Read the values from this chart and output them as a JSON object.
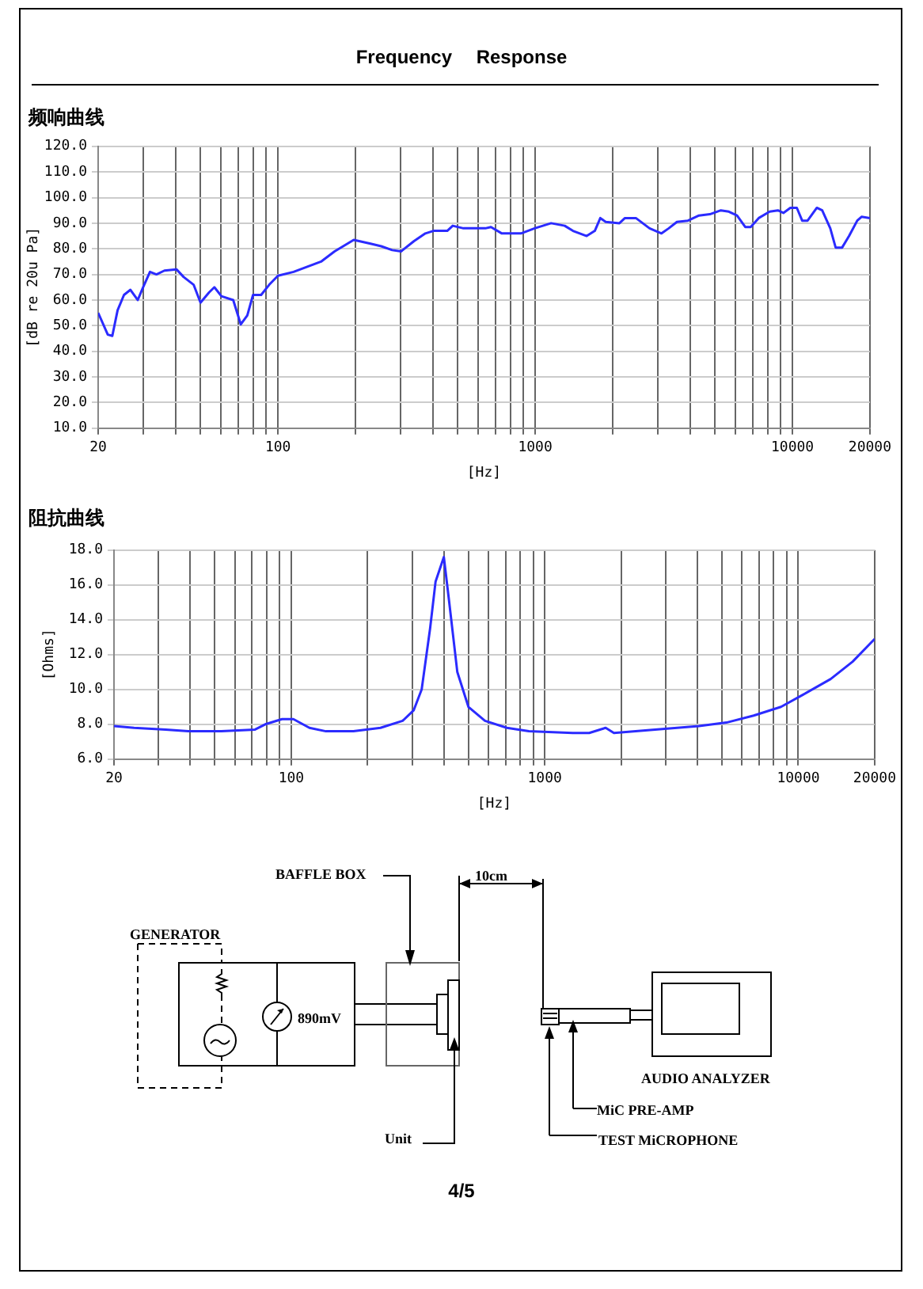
{
  "chart_data": [
    {
      "type": "line",
      "title": "Frequency Response",
      "subtitle": "频响曲线",
      "xlabel": "[Hz]",
      "ylabel": "[dB re 20u Pa]",
      "log": "x",
      "grid": true,
      "legend": false,
      "marker": "none",
      "line_style": "solid",
      "xlim": [
        20,
        20000
      ],
      "ylim": [
        10,
        120
      ],
      "xticks": [
        20,
        {
          "value": 30,
          "label": null
        },
        {
          "value": 40,
          "label": null
        },
        {
          "value": 50,
          "label": null
        },
        {
          "value": 60,
          "label": null
        },
        {
          "value": 70,
          "label": null
        },
        {
          "value": 80,
          "label": null
        },
        {
          "value": 90,
          "label": null
        },
        100,
        {
          "value": 200,
          "label": null
        },
        {
          "value": 300,
          "label": null
        },
        {
          "value": 400,
          "label": null
        },
        {
          "value": 500,
          "label": null
        },
        {
          "value": 600,
          "label": null
        },
        {
          "value": 700,
          "label": null
        },
        {
          "value": 800,
          "label": null
        },
        {
          "value": 900,
          "label": null
        },
        1000,
        {
          "value": 2000,
          "label": null
        },
        {
          "value": 3000,
          "label": null
        },
        {
          "value": 4000,
          "label": null
        },
        {
          "value": 5000,
          "label": null
        },
        {
          "value": 6000,
          "label": null
        },
        {
          "value": 7000,
          "label": null
        },
        {
          "value": 8000,
          "label": null
        },
        {
          "value": 9000,
          "label": null
        },
        10000,
        20000
      ],
      "yticks": [
        {
          "value": 10,
          "label": "10.0"
        },
        {
          "value": 20,
          "label": "20.0"
        },
        {
          "value": 30,
          "label": "30.0"
        },
        {
          "value": 40,
          "label": "40.0"
        },
        {
          "value": 50,
          "label": "50.0"
        },
        {
          "value": 60,
          "label": "60.0"
        },
        {
          "value": 70,
          "label": "70.0"
        },
        {
          "value": 80,
          "label": "80.0"
        },
        {
          "value": 90,
          "label": "90.0"
        },
        {
          "value": 100,
          "label": "100.0"
        },
        {
          "value": 110,
          "label": "110.0"
        },
        {
          "value": 120,
          "label": "120.0"
        }
      ],
      "series": [
        {
          "color": "#2b2bff",
          "x": [
            20,
            21.8,
            22.7,
            23.8,
            25.2,
            26.7,
            28.5,
            29.9,
            31.8,
            33.7,
            36.2,
            40.3,
            43,
            47,
            50,
            54,
            56.6,
            60.3,
            67,
            71.7,
            76,
            80,
            86,
            92.5,
            100,
            115,
            130,
            147,
            166,
            197,
            229,
            252,
            278,
            301,
            338,
            374,
            402,
            455,
            478,
            526,
            640,
            673,
            742,
            880,
            995,
            1153,
            1302,
            1402,
            1585,
            1705,
            1791,
            1880,
            2125,
            2233,
            2462,
            2783,
            3097,
            3304,
            3556,
            3925,
            4331,
            4776,
            5268,
            5659,
            6088,
            6553,
            6880,
            7394,
            8155,
            8780,
            9220,
            9815,
            10400,
            10910,
            11450,
            12440,
            13050,
            14030,
            14720,
            15600,
            16600,
            17860,
            18560,
            20000
          ],
          "values": [
            55,
            46.5,
            46,
            56,
            62,
            64,
            60,
            65,
            71,
            70,
            71.5,
            72,
            69,
            66,
            59,
            63,
            65,
            61.5,
            60,
            50.5,
            54,
            62,
            62,
            66,
            69.5,
            71,
            73,
            75,
            79,
            83.5,
            82,
            81,
            79.5,
            79,
            83,
            86,
            87,
            87,
            89,
            88,
            88,
            88.5,
            86,
            86,
            88,
            90,
            89,
            87,
            85,
            87,
            92,
            90.5,
            90,
            92,
            92,
            88,
            86,
            88,
            90.5,
            91,
            93,
            93.5,
            95,
            94.5,
            93,
            88.5,
            88.5,
            92,
            94.5,
            95,
            94,
            96,
            96,
            91,
            91,
            96,
            95,
            88,
            80.5,
            80.5,
            85,
            91,
            92.5,
            92
          ]
        }
      ]
    },
    {
      "type": "line",
      "title": "阻抗曲线",
      "xlabel": "[Hz]",
      "ylabel": "[Ohms]",
      "log": "x",
      "grid": true,
      "legend": false,
      "marker": "none",
      "line_style": "solid",
      "xlim": [
        20,
        20000
      ],
      "ylim": [
        6,
        18
      ],
      "xticks": [
        20,
        {
          "value": 30,
          "label": null
        },
        {
          "value": 40,
          "label": null
        },
        {
          "value": 50,
          "label": null
        },
        {
          "value": 60,
          "label": null
        },
        {
          "value": 70,
          "label": null
        },
        {
          "value": 80,
          "label": null
        },
        {
          "value": 90,
          "label": null
        },
        100,
        {
          "value": 200,
          "label": null
        },
        {
          "value": 300,
          "label": null
        },
        {
          "value": 400,
          "label": null
        },
        {
          "value": 500,
          "label": null
        },
        {
          "value": 600,
          "label": null
        },
        {
          "value": 700,
          "label": null
        },
        {
          "value": 800,
          "label": null
        },
        {
          "value": 900,
          "label": null
        },
        1000,
        {
          "value": 2000,
          "label": null
        },
        {
          "value": 3000,
          "label": null
        },
        {
          "value": 4000,
          "label": null
        },
        {
          "value": 5000,
          "label": null
        },
        {
          "value": 6000,
          "label": null
        },
        {
          "value": 7000,
          "label": null
        },
        {
          "value": 8000,
          "label": null
        },
        {
          "value": 9000,
          "label": null
        },
        10000,
        20000
      ],
      "yticks": [
        {
          "value": 6,
          "label": "6.0"
        },
        {
          "value": 8,
          "label": "8.0"
        },
        {
          "value": 10,
          "label": "10.0"
        },
        {
          "value": 12,
          "label": "12.0"
        },
        {
          "value": 14,
          "label": "14.0"
        },
        {
          "value": 16,
          "label": "16.0"
        },
        {
          "value": 18,
          "label": "18.0"
        }
      ],
      "series": [
        {
          "color": "#2b2bff",
          "x": [
            20,
            24,
            32,
            39.3,
            53,
            72,
            79,
            92,
            102,
            118,
            137,
            176,
            225,
            275,
            304,
            327,
            353,
            371,
            400,
            420,
            452,
            500,
            581,
            709,
            866,
            1289,
            1497,
            1739,
            1874,
            2722,
            4058,
            5207,
            6670,
            8544,
            10440,
            13410,
            16380,
            20000
          ],
          "values": [
            7.9,
            7.8,
            7.7,
            7.6,
            7.6,
            7.7,
            8.0,
            8.3,
            8.3,
            7.8,
            7.6,
            7.6,
            7.8,
            8.2,
            8.8,
            10,
            13.5,
            16.2,
            17.6,
            15,
            11,
            9,
            8.2,
            7.8,
            7.6,
            7.5,
            7.5,
            7.8,
            7.5,
            7.7,
            7.9,
            8.1,
            8.5,
            9.0,
            9.7,
            10.6,
            11.6,
            12.9
          ]
        }
      ]
    },
    {
      "type": "other",
      "annotations": [
        "BAFFLE BOX",
        "10cm",
        "GENERATOR",
        "890mV",
        "AUDIO ANALYZER",
        "MiC PRE-AMP",
        "TEST MiCROPHONE",
        "Unit",
        "4/5"
      ]
    }
  ]
}
